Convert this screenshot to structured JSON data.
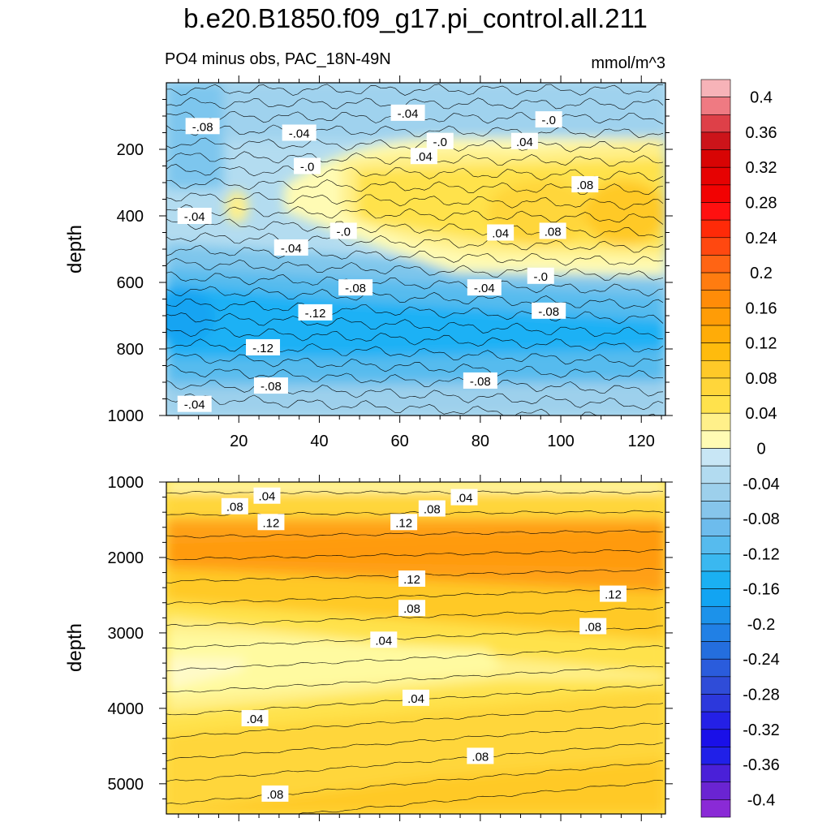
{
  "title": "b.e20.B1850.f09_g17.pi_control.all.211",
  "subtitle": "PO4 minus obs, PAC_18N-49N",
  "units": "mmol/m^3",
  "chart_data": [
    {
      "type": "heatmap",
      "name": "upper",
      "xlabel": "",
      "ylabel": "depth",
      "xlim": [
        2,
        126
      ],
      "ylim": [
        1000,
        0
      ],
      "xticks": [
        20,
        40,
        60,
        80,
        100,
        120
      ],
      "yticks": [
        200,
        400,
        600,
        800,
        1000
      ],
      "contour_labels": [
        {
          "text": "-.04",
          "x": 62,
          "y": 90
        },
        {
          "text": "-.08",
          "x": 11,
          "y": 130
        },
        {
          "text": "-.04",
          "x": 35,
          "y": 150
        },
        {
          "text": "-.0",
          "x": 97,
          "y": 110
        },
        {
          "text": "-.0",
          "x": 70,
          "y": 175
        },
        {
          "text": ".04",
          "x": 91,
          "y": 175
        },
        {
          "text": ".04",
          "x": 66,
          "y": 220
        },
        {
          "text": "-.0",
          "x": 37,
          "y": 250
        },
        {
          "text": ".08",
          "x": 106,
          "y": 305
        },
        {
          "text": "-.04",
          "x": 9,
          "y": 400
        },
        {
          "text": "-.0",
          "x": 46,
          "y": 445
        },
        {
          "text": ".04",
          "x": 85,
          "y": 450
        },
        {
          "text": ".08",
          "x": 98,
          "y": 445
        },
        {
          "text": "-.04",
          "x": 33,
          "y": 495
        },
        {
          "text": "-.0",
          "x": 95,
          "y": 580
        },
        {
          "text": "-.08",
          "x": 49,
          "y": 615
        },
        {
          "text": "-.04",
          "x": 81,
          "y": 615
        },
        {
          "text": "-.12",
          "x": 39,
          "y": 690
        },
        {
          "text": "-.08",
          "x": 97,
          "y": 685
        },
        {
          "text": "-.12",
          "x": 26,
          "y": 795
        },
        {
          "text": "-.08",
          "x": 28,
          "y": 910
        },
        {
          "text": "-.08",
          "x": 80,
          "y": 895
        },
        {
          "text": "-.04",
          "x": 9,
          "y": 965
        }
      ]
    },
    {
      "type": "heatmap",
      "name": "lower",
      "xlabel": "",
      "ylabel": "depth",
      "xlim": [
        2,
        126
      ],
      "ylim": [
        5400,
        1000
      ],
      "yticks": [
        1000,
        2000,
        3000,
        4000,
        5000
      ],
      "contour_labels": [
        {
          "text": ".04",
          "x": 27,
          "y": 1180
        },
        {
          "text": ".04",
          "x": 76,
          "y": 1200
        },
        {
          "text": ".08",
          "x": 19,
          "y": 1320
        },
        {
          "text": ".08",
          "x": 68,
          "y": 1350
        },
        {
          "text": ".12",
          "x": 28,
          "y": 1530
        },
        {
          "text": ".12",
          "x": 61,
          "y": 1530
        },
        {
          "text": ".12",
          "x": 63,
          "y": 2280
        },
        {
          "text": ".12",
          "x": 113,
          "y": 2480
        },
        {
          "text": ".08",
          "x": 63,
          "y": 2670
        },
        {
          "text": ".08",
          "x": 108,
          "y": 2910
        },
        {
          "text": ".04",
          "x": 56,
          "y": 3090
        },
        {
          "text": ".04",
          "x": 64,
          "y": 3860
        },
        {
          "text": ".04",
          "x": 24,
          "y": 4130
        },
        {
          "text": ".08",
          "x": 80,
          "y": 4630
        },
        {
          "text": ".08",
          "x": 29,
          "y": 5130
        }
      ]
    },
    {
      "type": "colorbar",
      "name": "colorbar",
      "tick_labels": [
        "0.4",
        "0.36",
        "0.32",
        "0.28",
        "0.24",
        "0.2",
        "0.16",
        "0.12",
        "0.08",
        "0.04",
        "0",
        "-0.04",
        "-0.08",
        "-0.12",
        "-0.16",
        "-0.2",
        "-0.24",
        "-0.28",
        "-0.32",
        "-0.36",
        "-0.4"
      ],
      "levels": [
        0.42,
        0.4,
        0.38,
        0.36,
        0.34,
        0.32,
        0.3,
        0.28,
        0.26,
        0.24,
        0.22,
        0.2,
        0.18,
        0.16,
        0.14,
        0.12,
        0.1,
        0.08,
        0.06,
        0.04,
        0.02,
        0.0,
        -0.02,
        -0.04,
        -0.06,
        -0.08,
        -0.1,
        -0.12,
        -0.14,
        -0.16,
        -0.18,
        -0.2,
        -0.22,
        -0.24,
        -0.26,
        -0.28,
        -0.3,
        -0.32,
        -0.34,
        -0.36,
        -0.38,
        -0.4,
        -0.42
      ],
      "colors": [
        "#f7b3b8",
        "#ef7a82",
        "#de4048",
        "#cc141a",
        "#d80404",
        "#e60202",
        "#f20202",
        "#ff1010",
        "#ff2a08",
        "#ff4810",
        "#ff6414",
        "#ff7c10",
        "#ff8c08",
        "#ff9c06",
        "#ffac08",
        "#ffbb0d",
        "#ffc928",
        "#ffd63a",
        "#ffe24c",
        "#fff08a",
        "#fffbb4",
        "#c8e6f5",
        "#b2dbf0",
        "#9dd0ec",
        "#86c5eb",
        "#6dbced",
        "#56bbee",
        "#3ab8f0",
        "#1ab0f2",
        "#12a4f2",
        "#1c92ea",
        "#2180e5",
        "#246ede",
        "#2a5cdc",
        "#2f4cd8",
        "#2c38dc",
        "#2420e6",
        "#1a10e8",
        "#2020e8",
        "#4a20d8",
        "#6a24d2",
        "#8a2ad6"
      ]
    }
  ],
  "colors": {
    "upper_deep_blue": "#1db1f5",
    "upper_light_blue": "#b3dcf0",
    "upper_yellow": "#ffd84a",
    "lower_orange": "#ffa018",
    "lower_pale_yellow": "#fffac8"
  }
}
